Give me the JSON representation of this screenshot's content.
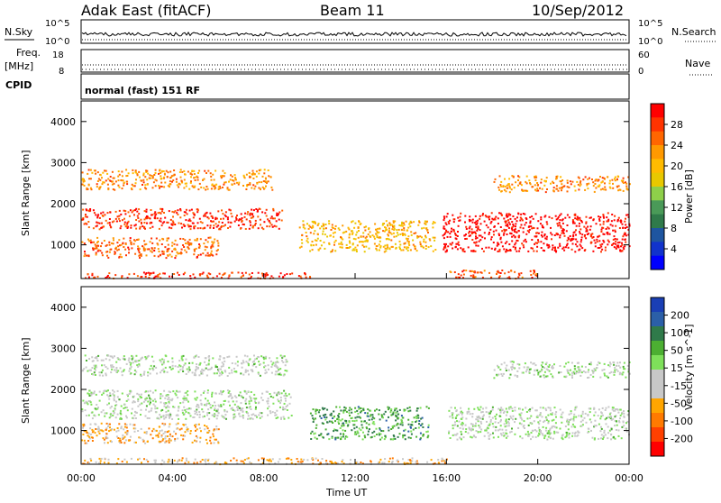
{
  "header": {
    "station": "Adak East (fitACF)",
    "beam": "Beam 11",
    "date": "10/Sep/2012"
  },
  "top_panels": {
    "nsky_label": "N.Sky",
    "nsearch_label": "N.Search",
    "log_ticks": [
      "10^5",
      "10^0"
    ],
    "freq_label": "Freq.",
    "freq_unit": "[MHz]",
    "freq_ticks": [
      "18",
      "8"
    ],
    "nave_label": "Nave",
    "nave_ticks": [
      "60",
      "0"
    ],
    "cpid_label": "CPID",
    "cpid_text": "normal (fast) 151 RF"
  },
  "chart_data": [
    {
      "type": "heatmap",
      "name_label": "Power",
      "colorbar_label": "Power [dB]",
      "ylabel": "Slant Range [km]",
      "yticks": [
        "4000",
        "3000",
        "2000",
        "1000"
      ],
      "ylim": [
        180,
        4500
      ],
      "xlim_hours": [
        0,
        24
      ],
      "xticks": [
        "00:00",
        "04:00",
        "08:00",
        "12:00",
        "16:00",
        "20:00",
        "00:00"
      ],
      "colorbar_ticks": [
        "28",
        "24",
        "20",
        "16",
        "12",
        "8",
        "4"
      ],
      "colorbar_colors": [
        "#ff0000",
        "#ff3300",
        "#ff6600",
        "#ff9900",
        "#ffbb00",
        "#e8c800",
        "#8ecf4a",
        "#4a9a58",
        "#2f7a4a",
        "#1e55a0",
        "#1133cc",
        "#0000ff"
      ],
      "bands": [
        {
          "t0": 0.0,
          "t1": 8.4,
          "r0": 2350,
          "r1": 2850,
          "class": 3
        },
        {
          "t0": 0.0,
          "t1": 8.8,
          "r0": 1400,
          "r1": 1900,
          "class": 1
        },
        {
          "t0": 0.0,
          "t1": 6.0,
          "r0": 700,
          "r1": 1200,
          "class": 2
        },
        {
          "t0": 0.0,
          "t1": 10.0,
          "r0": 200,
          "r1": 350,
          "class": 1
        },
        {
          "t0": 9.5,
          "t1": 15.5,
          "r0": 850,
          "r1": 1600,
          "class": 4
        },
        {
          "t0": 15.8,
          "t1": 24.0,
          "r0": 850,
          "r1": 1800,
          "class": 0
        },
        {
          "t0": 18.0,
          "t1": 24.0,
          "r0": 2300,
          "r1": 2700,
          "class": 3
        },
        {
          "t0": 16.0,
          "t1": 20.0,
          "r0": 200,
          "r1": 400,
          "class": 2
        }
      ]
    },
    {
      "type": "heatmap",
      "name_label": "Velocity",
      "colorbar_label": "Velocity [m s^-1]",
      "ylabel": "Slant Range [km]",
      "yticks": [
        "4000",
        "3000",
        "2000",
        "1000"
      ],
      "ylim": [
        180,
        4500
      ],
      "xlim_hours": [
        0,
        24
      ],
      "xlabel": "Time UT",
      "xticks": [
        "00:00",
        "04:00",
        "08:00",
        "12:00",
        "16:00",
        "20:00",
        "00:00"
      ],
      "colorbar_ticks": [
        "200",
        "100",
        "50",
        "15",
        "-15",
        "-50",
        "-100",
        "-200"
      ],
      "colorbar_colors": [
        "#1a3fb5",
        "#2b5fa8",
        "#2f7a4a",
        "#4caf32",
        "#7ee05a",
        "#c8c8c8",
        "#c8c8c8",
        "#ffa500",
        "#ff7a00",
        "#ff4000",
        "#ff0000"
      ],
      "bands": [
        {
          "t0": 0.0,
          "t1": 9.0,
          "r0": 2350,
          "r1": 2850,
          "class": 5
        },
        {
          "t0": 0.0,
          "t1": 9.2,
          "r0": 1300,
          "r1": 2000,
          "class": 5
        },
        {
          "t0": 0.0,
          "t1": 6.0,
          "r0": 700,
          "r1": 1200,
          "class": 7
        },
        {
          "t0": 10.0,
          "t1": 15.2,
          "r0": 800,
          "r1": 1600,
          "class": 3
        },
        {
          "t0": 16.0,
          "t1": 24.0,
          "r0": 800,
          "r1": 1600,
          "class": 5
        },
        {
          "t0": 18.0,
          "t1": 24.0,
          "r0": 2300,
          "r1": 2700,
          "class": 5
        },
        {
          "t0": 0.0,
          "t1": 16.0,
          "r0": 200,
          "r1": 350,
          "class": 7
        }
      ]
    }
  ]
}
